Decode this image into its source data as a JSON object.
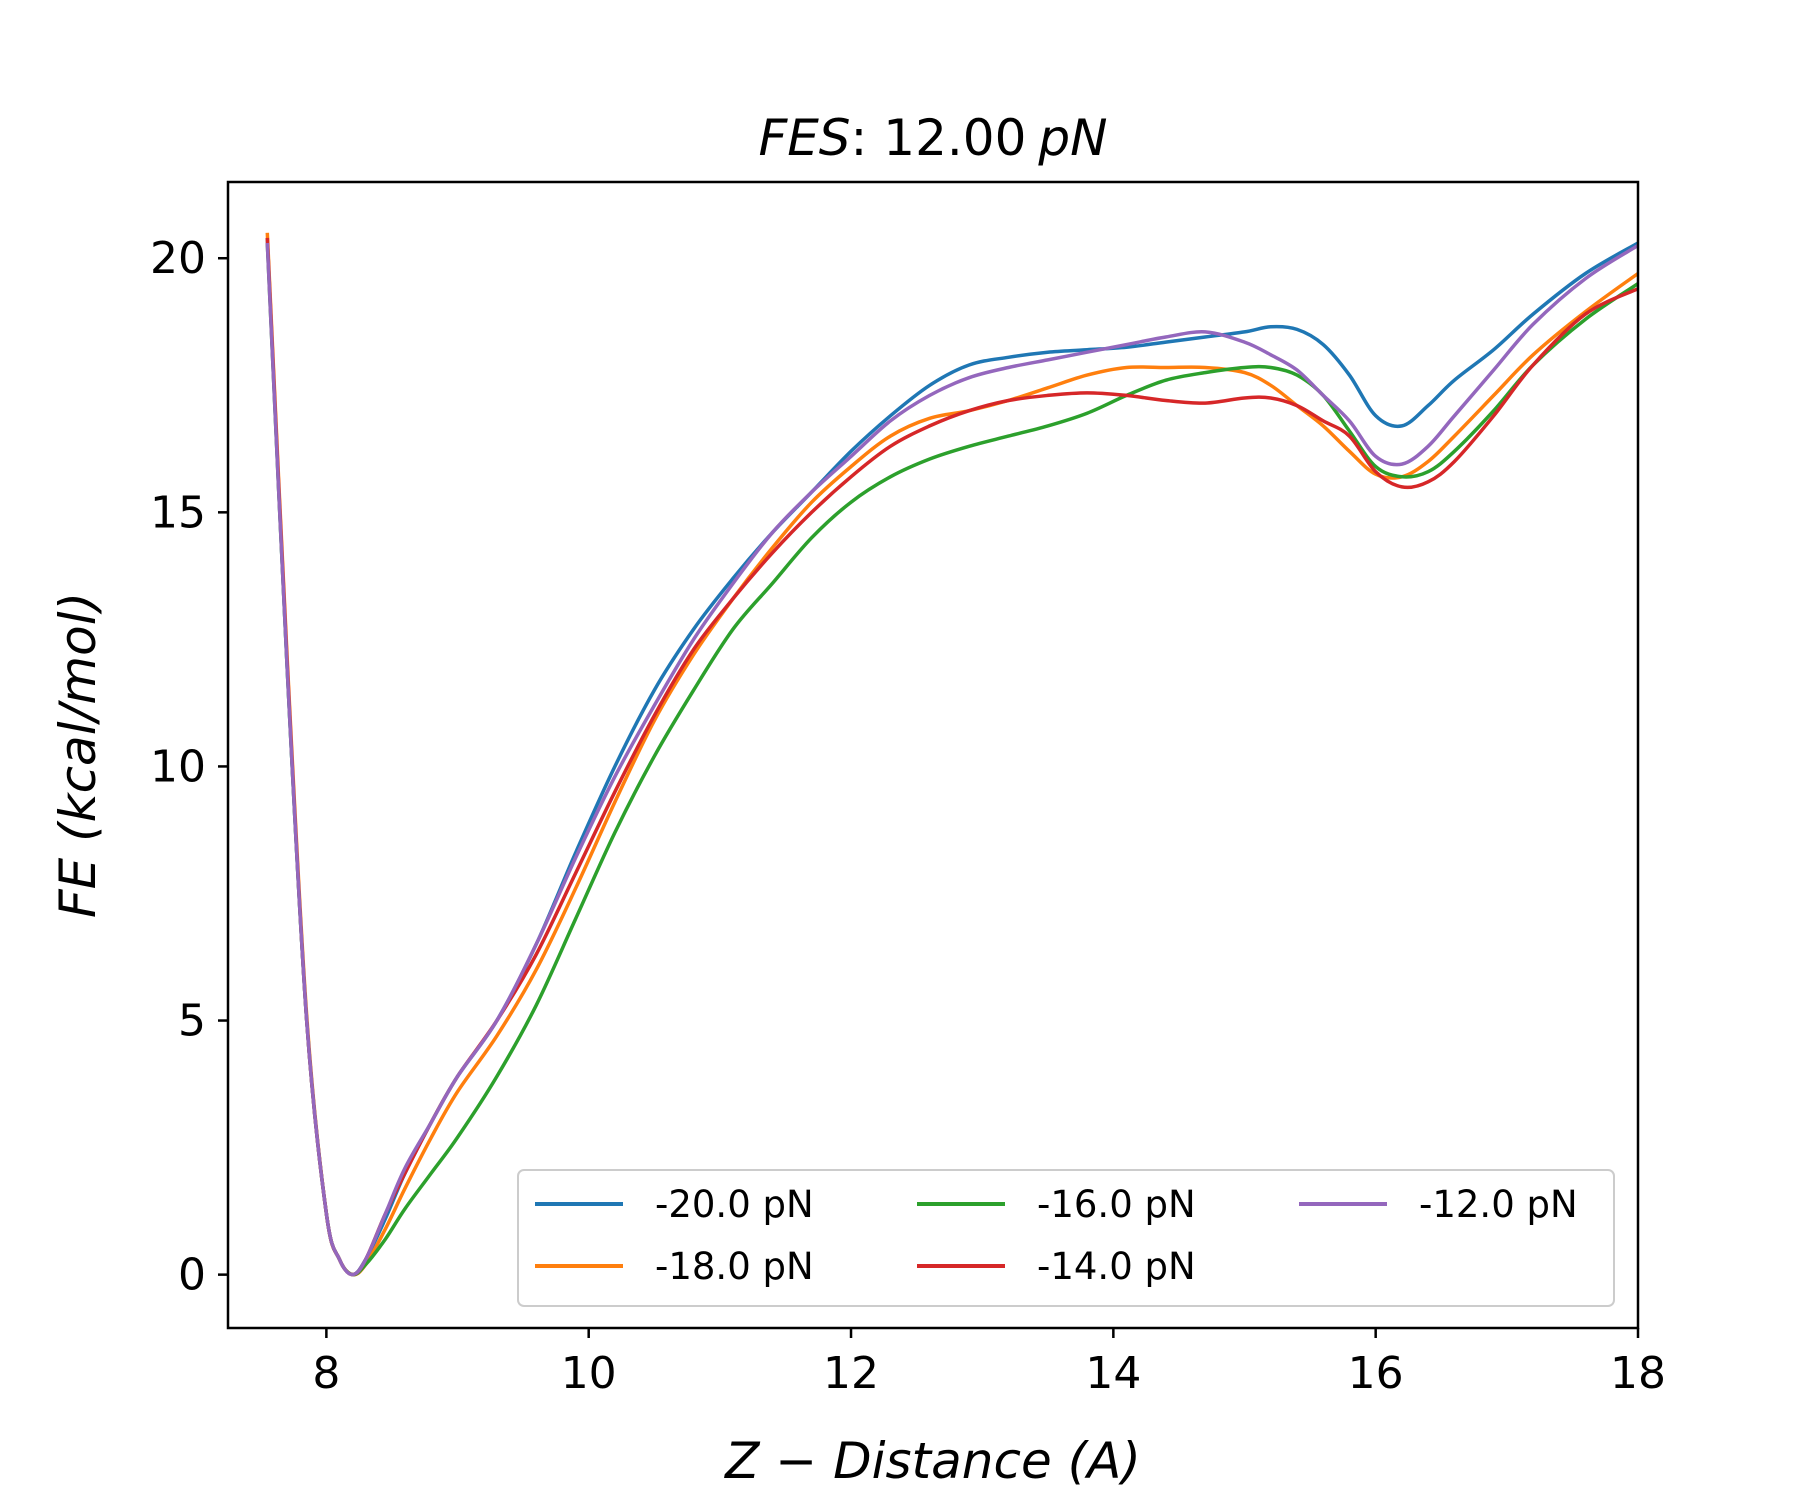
{
  "chart_data": {
    "type": "line",
    "title_main": "FES",
    "title_sep": ": ",
    "title_value": "12.00",
    "title_unit": "pN",
    "xlabel": "Z − Distance (A)",
    "ylabel": "FE (kcal/mol)",
    "xlim": [
      7.25,
      18.0
    ],
    "ylim": [
      -1.05,
      21.5
    ],
    "xticks": [
      8,
      10,
      12,
      14,
      16,
      18
    ],
    "yticks": [
      0,
      5,
      10,
      15,
      20
    ],
    "legend": {
      "location": "lower-right",
      "columns": 3
    },
    "series": [
      {
        "name": "-20.0 pN",
        "color": "#1f77b4",
        "x": [
          7.55,
          7.7,
          7.85,
          8.0,
          8.1,
          8.2,
          8.3,
          8.45,
          8.6,
          8.8,
          9.0,
          9.3,
          9.6,
          9.9,
          10.2,
          10.5,
          10.8,
          11.1,
          11.4,
          11.7,
          12.0,
          12.3,
          12.6,
          12.9,
          13.2,
          13.5,
          13.8,
          14.1,
          14.4,
          14.7,
          15.0,
          15.2,
          15.4,
          15.6,
          15.8,
          16.0,
          16.2,
          16.4,
          16.6,
          16.9,
          17.2,
          17.6,
          18.0
        ],
        "y": [
          20.4,
          12.0,
          5.0,
          1.2,
          0.3,
          0.0,
          0.3,
          1.1,
          2.0,
          3.0,
          3.9,
          5.0,
          6.5,
          8.3,
          10.0,
          11.5,
          12.7,
          13.7,
          14.6,
          15.4,
          16.2,
          16.9,
          17.5,
          17.9,
          18.05,
          18.15,
          18.2,
          18.25,
          18.35,
          18.45,
          18.55,
          18.65,
          18.6,
          18.3,
          17.7,
          16.9,
          16.7,
          17.1,
          17.6,
          18.2,
          18.9,
          19.7,
          20.3
        ]
      },
      {
        "name": "-18.0 pN",
        "color": "#ff7f0e",
        "x": [
          7.55,
          7.7,
          7.85,
          8.0,
          8.1,
          8.2,
          8.3,
          8.45,
          8.6,
          8.8,
          9.0,
          9.3,
          9.6,
          9.9,
          10.2,
          10.5,
          10.8,
          11.1,
          11.4,
          11.7,
          12.0,
          12.3,
          12.6,
          12.9,
          13.2,
          13.5,
          13.8,
          14.1,
          14.4,
          14.7,
          15.0,
          15.2,
          15.4,
          15.6,
          15.8,
          16.0,
          16.2,
          16.4,
          16.6,
          16.9,
          17.2,
          17.6,
          18.0
        ],
        "y": [
          20.5,
          12.2,
          5.1,
          1.2,
          0.3,
          0.0,
          0.2,
          0.9,
          1.7,
          2.7,
          3.6,
          4.7,
          6.0,
          7.6,
          9.3,
          10.9,
          12.2,
          13.3,
          14.3,
          15.2,
          15.9,
          16.5,
          16.85,
          17.0,
          17.2,
          17.45,
          17.7,
          17.85,
          17.85,
          17.85,
          17.75,
          17.5,
          17.1,
          16.7,
          16.2,
          15.75,
          15.7,
          16.0,
          16.5,
          17.3,
          18.1,
          18.95,
          19.7
        ]
      },
      {
        "name": "-16.0 pN",
        "color": "#2ca02c",
        "x": [
          7.55,
          7.7,
          7.85,
          8.0,
          8.1,
          8.2,
          8.3,
          8.45,
          8.6,
          8.8,
          9.0,
          9.3,
          9.6,
          9.9,
          10.2,
          10.5,
          10.8,
          11.1,
          11.4,
          11.7,
          12.0,
          12.3,
          12.6,
          12.9,
          13.2,
          13.5,
          13.8,
          14.1,
          14.4,
          14.7,
          15.0,
          15.2,
          15.4,
          15.6,
          15.8,
          16.0,
          16.2,
          16.4,
          16.6,
          16.9,
          17.2,
          17.6,
          18.0
        ],
        "y": [
          20.3,
          12.0,
          5.0,
          1.2,
          0.3,
          0.0,
          0.2,
          0.7,
          1.3,
          2.0,
          2.7,
          3.9,
          5.3,
          7.0,
          8.7,
          10.2,
          11.5,
          12.7,
          13.6,
          14.5,
          15.2,
          15.7,
          16.05,
          16.3,
          16.5,
          16.7,
          16.95,
          17.3,
          17.6,
          17.75,
          17.85,
          17.85,
          17.7,
          17.3,
          16.6,
          15.9,
          15.7,
          15.8,
          16.2,
          17.0,
          17.9,
          18.8,
          19.5
        ]
      },
      {
        "name": "-14.0 pN",
        "color": "#d62728",
        "x": [
          7.55,
          7.7,
          7.85,
          8.0,
          8.1,
          8.2,
          8.3,
          8.45,
          8.6,
          8.8,
          9.0,
          9.3,
          9.6,
          9.9,
          10.2,
          10.5,
          10.8,
          11.1,
          11.4,
          11.7,
          12.0,
          12.3,
          12.6,
          12.9,
          13.2,
          13.5,
          13.8,
          14.1,
          14.4,
          14.7,
          15.0,
          15.2,
          15.4,
          15.6,
          15.8,
          16.0,
          16.2,
          16.4,
          16.6,
          16.9,
          17.2,
          17.6,
          18.0
        ],
        "y": [
          20.4,
          12.1,
          5.0,
          1.2,
          0.3,
          0.0,
          0.3,
          1.2,
          2.0,
          3.0,
          3.9,
          5.0,
          6.3,
          7.9,
          9.5,
          11.0,
          12.3,
          13.3,
          14.2,
          15.0,
          15.7,
          16.3,
          16.7,
          17.0,
          17.2,
          17.3,
          17.35,
          17.3,
          17.2,
          17.15,
          17.25,
          17.25,
          17.1,
          16.8,
          16.5,
          15.8,
          15.5,
          15.6,
          16.0,
          16.9,
          17.9,
          18.9,
          19.4
        ]
      },
      {
        "name": "-12.0 pN",
        "color": "#9467bd",
        "x": [
          7.55,
          7.7,
          7.85,
          8.0,
          8.1,
          8.2,
          8.3,
          8.45,
          8.6,
          8.8,
          9.0,
          9.3,
          9.6,
          9.9,
          10.2,
          10.5,
          10.8,
          11.1,
          11.4,
          11.7,
          12.0,
          12.3,
          12.6,
          12.9,
          13.2,
          13.5,
          13.8,
          14.1,
          14.4,
          14.7,
          15.0,
          15.2,
          15.4,
          15.6,
          15.8,
          16.0,
          16.2,
          16.4,
          16.6,
          16.9,
          17.2,
          17.6,
          18.0
        ],
        "y": [
          20.3,
          12.0,
          5.0,
          1.2,
          0.3,
          0.0,
          0.3,
          1.2,
          2.1,
          3.0,
          3.9,
          5.0,
          6.5,
          8.2,
          9.8,
          11.2,
          12.5,
          13.6,
          14.6,
          15.4,
          16.1,
          16.8,
          17.3,
          17.65,
          17.85,
          18.0,
          18.15,
          18.3,
          18.45,
          18.55,
          18.35,
          18.1,
          17.8,
          17.3,
          16.8,
          16.1,
          15.95,
          16.3,
          16.9,
          17.8,
          18.7,
          19.6,
          20.25
        ]
      }
    ]
  }
}
